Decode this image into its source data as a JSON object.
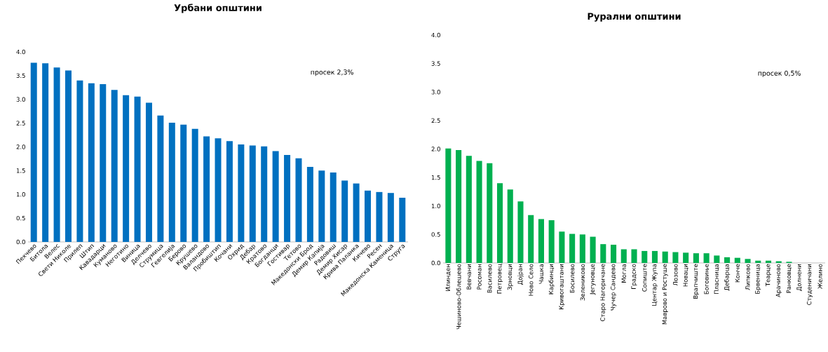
{
  "chart_data": [
    {
      "type": "bar",
      "title": "Урбани општини",
      "categories": [
        "Пехчево",
        "Битола",
        "Велес",
        "Свети Николе",
        "Прилеп",
        "Штип",
        "Кавадарци",
        "Куманово",
        "Неготино",
        "Виница",
        "Делчево",
        "Струмица",
        "Гевгелија",
        "Берово",
        "Крушево",
        "Валандово",
        "Пробиштип",
        "Кочани",
        "Охрид",
        "Дебар",
        "Кратово",
        "Богданци",
        "Гостивар",
        "Тетово",
        "Македонски Брод",
        "Демир Капија",
        "Радовиш",
        "Демир Хисар",
        "Крива Паланка",
        "Кичево",
        "Ресен",
        "Македонска Каменица",
        "Струга"
      ],
      "values": [
        3.77,
        3.76,
        3.67,
        3.61,
        3.4,
        3.34,
        3.32,
        3.2,
        3.09,
        3.06,
        2.93,
        2.66,
        2.51,
        2.47,
        2.38,
        2.22,
        2.18,
        2.12,
        2.05,
        2.03,
        2.01,
        1.91,
        1.83,
        1.76,
        1.58,
        1.5,
        1.46,
        1.29,
        1.23,
        1.08,
        1.05,
        1.03,
        0.93
      ],
      "color": "#0070c0",
      "ylim": [
        0,
        4
      ],
      "yticks": [
        {
          "value": 0,
          "label": "0.0"
        },
        {
          "value": 0.5,
          "label": "0.5"
        },
        {
          "value": 1,
          "label": "1.0"
        },
        {
          "value": 1.5,
          "label": "1.5"
        },
        {
          "value": 2,
          "label": "2.0"
        },
        {
          "value": 2.5,
          "label": "2.5"
        },
        {
          "value": 3,
          "label": "3.0"
        },
        {
          "value": 3.5,
          "label": "3.5"
        },
        {
          "value": 4,
          "label": "4.0"
        }
      ],
      "annotations": [
        "просек 2,3%"
      ]
    },
    {
      "type": "bar",
      "title": "Рурални општини",
      "categories": [
        "Илинден",
        "Чешиново-Облешево",
        "Вевчани",
        "Росоман",
        "Василево",
        "Петровец",
        "Зрновци",
        "Дојран",
        "Ново Село",
        "Чашка",
        "Карбинци",
        "Кривогаштани",
        "Босилево",
        "Зелениково",
        "Јегуновце",
        "Старо Нагоричане",
        "Чучер Сандево",
        "Могла",
        "Градско",
        "Сопиште",
        "Центар Жупа",
        "Маврово и Ростуше",
        "Лозово",
        "Новаци",
        "Врапчиште",
        "Боговиње",
        "Пласница",
        "Дебарца",
        "Конче",
        "Липково",
        "Брвеница",
        "Теарце",
        "Арачиново",
        "Ранковце",
        "Долнени",
        "Студеничани",
        "Желино"
      ],
      "values": [
        2.01,
        1.98,
        1.88,
        1.79,
        1.75,
        1.4,
        1.29,
        1.08,
        0.84,
        0.77,
        0.75,
        0.55,
        0.51,
        0.5,
        0.46,
        0.33,
        0.32,
        0.24,
        0.24,
        0.21,
        0.21,
        0.2,
        0.19,
        0.18,
        0.17,
        0.17,
        0.13,
        0.1,
        0.09,
        0.07,
        0.04,
        0.04,
        0.03,
        0.02,
        0,
        0,
        0
      ],
      "color": "#00b050",
      "ylim": [
        0,
        4
      ],
      "yticks": [
        {
          "value": 0,
          "label": "0.0"
        },
        {
          "value": 0.5,
          "label": "0.5"
        },
        {
          "value": 1,
          "label": "1.0"
        },
        {
          "value": 1.5,
          "label": "1.5"
        },
        {
          "value": 2,
          "label": "2.0"
        },
        {
          "value": 2.5,
          "label": "2.5"
        },
        {
          "value": 3,
          "label": "3.0"
        },
        {
          "value": 3.5,
          "label": "3.5"
        },
        {
          "value": 4,
          "label": "4.0"
        }
      ],
      "annotations": [
        "просек 0,5%"
      ]
    }
  ]
}
